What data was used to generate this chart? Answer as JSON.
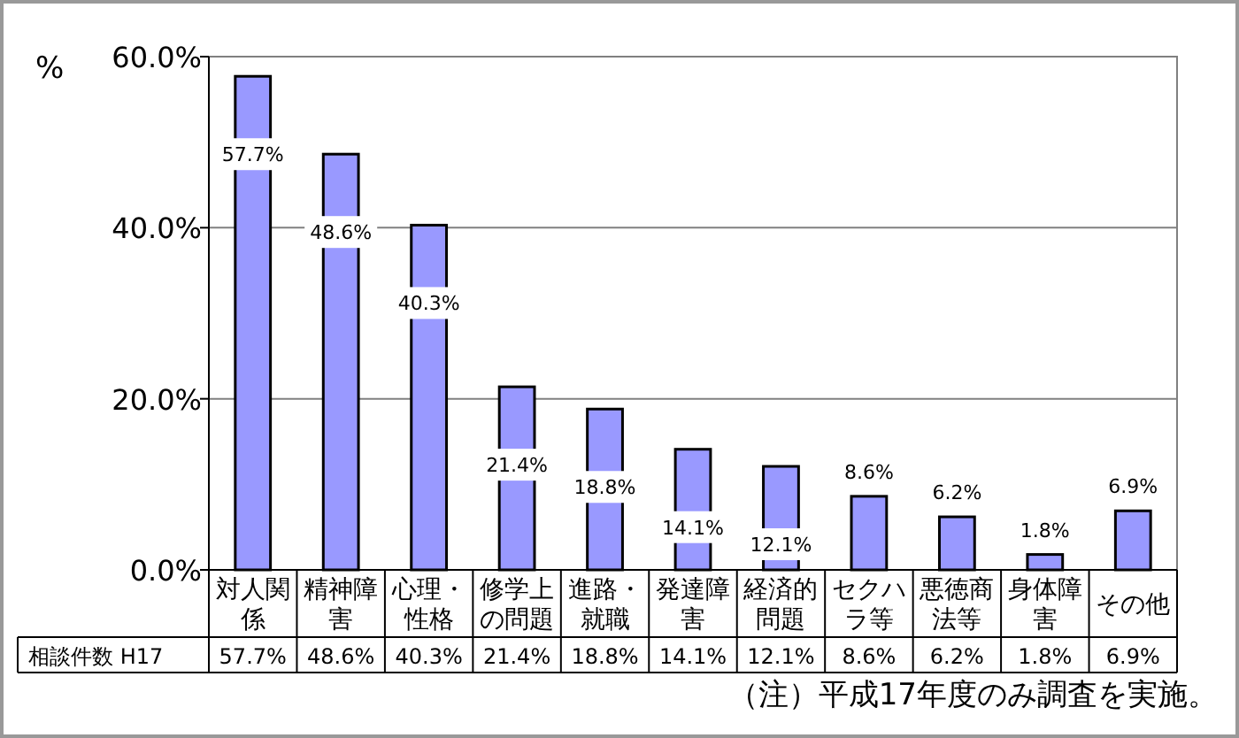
{
  "chart_data": {
    "type": "bar",
    "ylabel": "%",
    "categories": [
      "対人関係",
      "精神障害",
      "心理・性格",
      "修学上の問題",
      "進路・就職",
      "発達障害",
      "経済的問題",
      "セクハラ等",
      "悪徳商法等",
      "身体障害",
      "その他"
    ],
    "series": [
      {
        "name": "相談件数 H17",
        "color": "#9999ff",
        "values": [
          57.7,
          48.6,
          40.3,
          21.4,
          18.8,
          14.1,
          12.1,
          8.6,
          6.2,
          1.8,
          6.9
        ],
        "value_labels": [
          "57.7%",
          "48.6%",
          "40.3%",
          "21.4%",
          "18.8%",
          "14.1%",
          "12.1%",
          "8.6%",
          "6.2%",
          "1.8%",
          "6.9%"
        ]
      }
    ],
    "ylim": [
      0,
      60
    ],
    "yticks": [
      {
        "value": 0,
        "label": "0.0%"
      },
      {
        "value": 20,
        "label": "20.0%"
      },
      {
        "value": 40,
        "label": "40.0%"
      },
      {
        "value": 60,
        "label": "60.0%"
      }
    ],
    "grid": "y",
    "legend": "bottom left",
    "annotations": [
      "（注）平成17年度のみ調査を実施。"
    ]
  }
}
